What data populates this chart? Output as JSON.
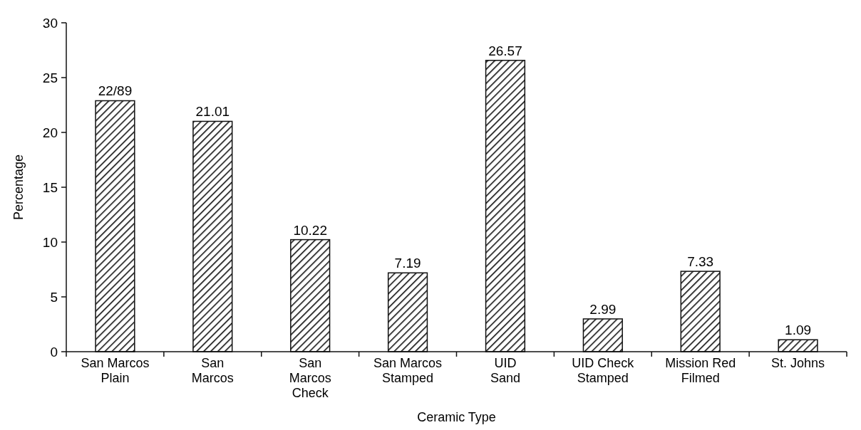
{
  "chart_data": {
    "type": "bar",
    "xlabel": "Ceramic Type",
    "ylabel": "Percentage",
    "categories": [
      "San Marcos\nPlain",
      "San\nMarcos",
      "San\nMarcos\nCheck",
      "San Marcos\nStamped",
      "UID\nSand",
      "UID Check\nStamped",
      "Mission Red\nFilmed",
      "St. Johns"
    ],
    "values": [
      22.89,
      21.01,
      10.22,
      7.19,
      26.57,
      2.99,
      7.33,
      1.09
    ],
    "value_labels": [
      "22/89",
      "21.01",
      "10.22",
      "7.19",
      "26.57",
      "2.99",
      "7.33",
      "1.09"
    ],
    "color": "#111111",
    "ylim": [
      0,
      30
    ],
    "yticks": [
      0,
      5,
      10,
      15,
      20,
      25,
      30
    ],
    "grid": false
  }
}
